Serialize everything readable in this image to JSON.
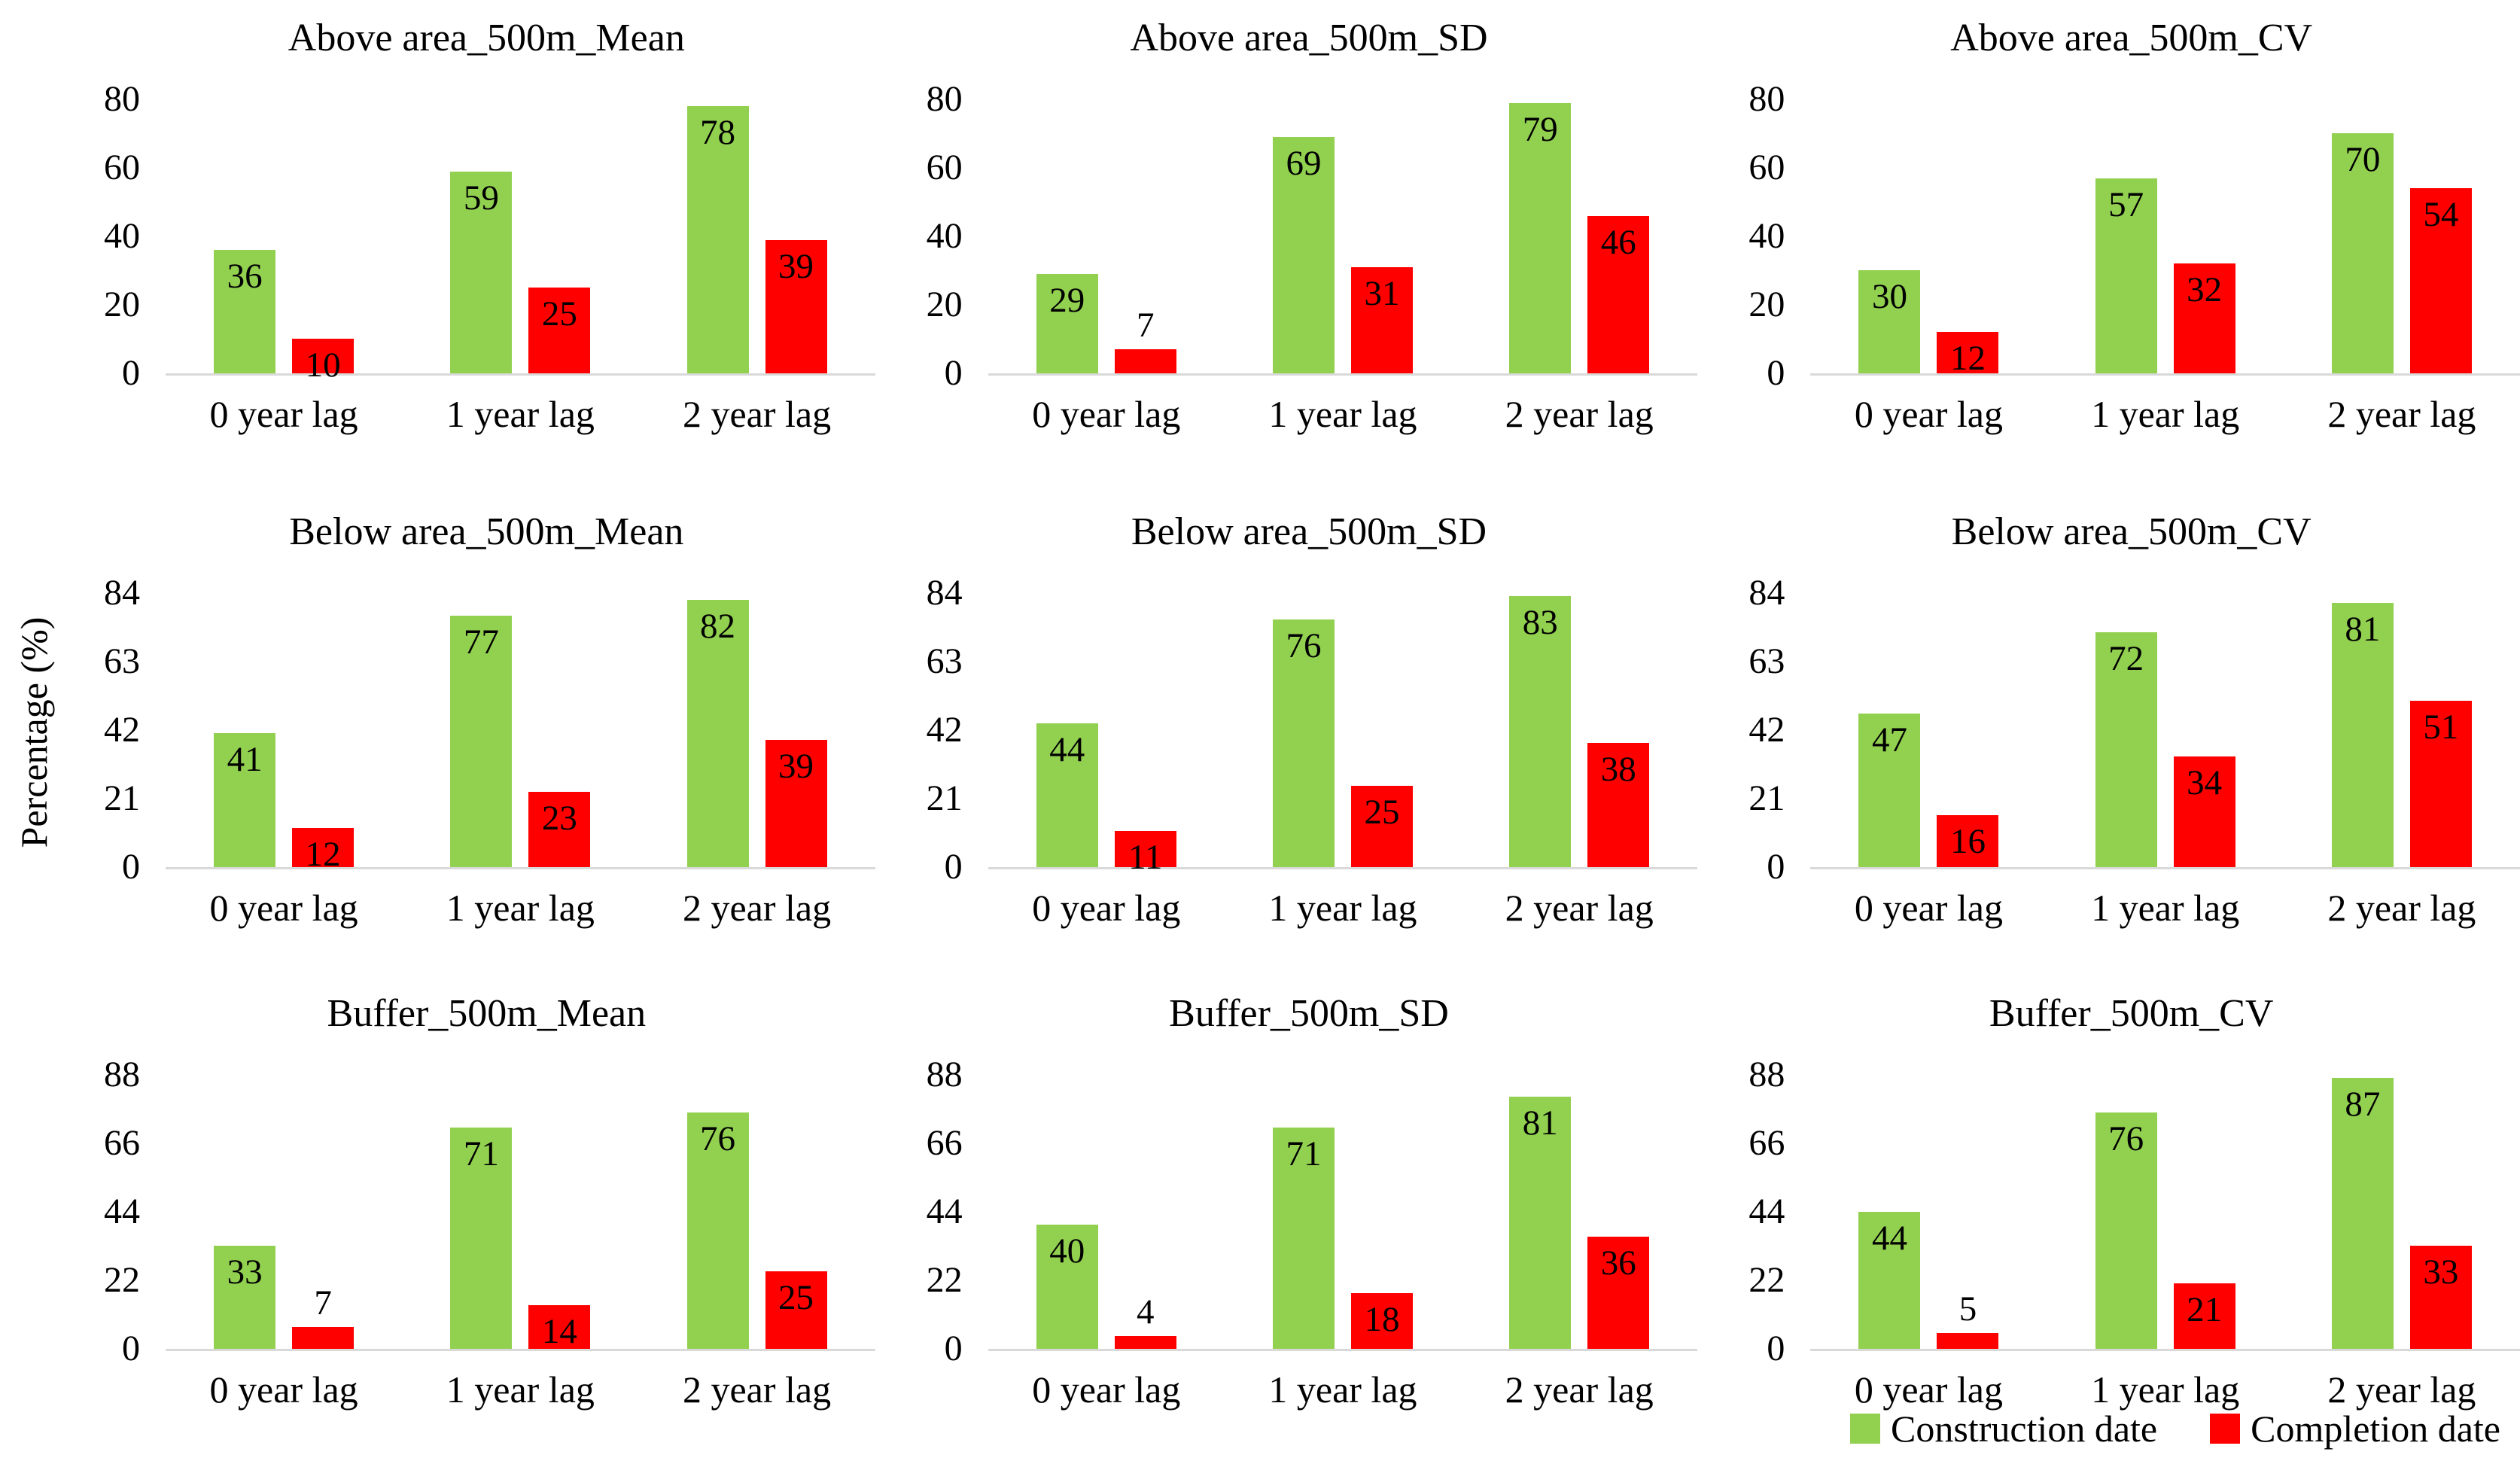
{
  "ylabel": "Percentage (%)",
  "legend": [
    {
      "label": "Construction date",
      "color": "#92D050"
    },
    {
      "label": "Completion date",
      "color": "#FF0000"
    }
  ],
  "chart_data": [
    {
      "type": "bar",
      "title": "Above area_500m_Mean",
      "categories": [
        "0 year lag",
        "1 year lag",
        "2 year lag"
      ],
      "series": [
        {
          "name": "Construction date",
          "color": "#92D050",
          "values": [
            36,
            59,
            78
          ]
        },
        {
          "name": "Completion date",
          "color": "#FF0000",
          "values": [
            10,
            25,
            39
          ]
        }
      ],
      "yticks": [
        0,
        20,
        40,
        60,
        80
      ],
      "ylim": [
        0,
        80
      ],
      "xlabel": "",
      "ylabel": "Percentage (%)",
      "grid": false,
      "legend_position": "bottom-right"
    },
    {
      "type": "bar",
      "title": "Above area_500m_SD",
      "categories": [
        "0 year lag",
        "1 year lag",
        "2 year lag"
      ],
      "series": [
        {
          "name": "Construction date",
          "color": "#92D050",
          "values": [
            29,
            69,
            79
          ]
        },
        {
          "name": "Completion date",
          "color": "#FF0000",
          "values": [
            7,
            31,
            46
          ]
        }
      ],
      "yticks": [
        0,
        20,
        40,
        60,
        80
      ],
      "ylim": [
        0,
        80
      ],
      "xlabel": "",
      "ylabel": "Percentage (%)",
      "grid": false,
      "legend_position": "bottom-right"
    },
    {
      "type": "bar",
      "title": "Above area_500m_CV",
      "categories": [
        "0 year lag",
        "1 year lag",
        "2 year lag"
      ],
      "series": [
        {
          "name": "Construction date",
          "color": "#92D050",
          "values": [
            30,
            57,
            70
          ]
        },
        {
          "name": "Completion date",
          "color": "#FF0000",
          "values": [
            12,
            32,
            54
          ]
        }
      ],
      "yticks": [
        0,
        20,
        40,
        60,
        80
      ],
      "ylim": [
        0,
        80
      ],
      "xlabel": "",
      "ylabel": "Percentage (%)",
      "grid": false,
      "legend_position": "bottom-right"
    },
    {
      "type": "bar",
      "title": "Below area_500m_Mean",
      "categories": [
        "0 year lag",
        "1 year lag",
        "2 year lag"
      ],
      "series": [
        {
          "name": "Construction date",
          "color": "#92D050",
          "values": [
            41,
            77,
            82
          ]
        },
        {
          "name": "Completion date",
          "color": "#FF0000",
          "values": [
            12,
            23,
            39
          ]
        }
      ],
      "yticks": [
        0,
        21,
        42,
        63,
        84
      ],
      "ylim": [
        0,
        84
      ],
      "xlabel": "",
      "ylabel": "Percentage (%)",
      "grid": false,
      "legend_position": "bottom-right"
    },
    {
      "type": "bar",
      "title": "Below area_500m_SD",
      "categories": [
        "0 year lag",
        "1 year lag",
        "2 year lag"
      ],
      "series": [
        {
          "name": "Construction date",
          "color": "#92D050",
          "values": [
            44,
            76,
            83
          ]
        },
        {
          "name": "Completion date",
          "color": "#FF0000",
          "values": [
            11,
            25,
            38
          ]
        }
      ],
      "yticks": [
        0,
        21,
        42,
        63,
        84
      ],
      "ylim": [
        0,
        84
      ],
      "xlabel": "",
      "ylabel": "Percentage (%)",
      "grid": false,
      "legend_position": "bottom-right"
    },
    {
      "type": "bar",
      "title": "Below area_500m_CV",
      "categories": [
        "0 year lag",
        "1 year lag",
        "2 year lag"
      ],
      "series": [
        {
          "name": "Construction date",
          "color": "#92D050",
          "values": [
            47,
            72,
            81
          ]
        },
        {
          "name": "Completion date",
          "color": "#FF0000",
          "values": [
            16,
            34,
            51
          ]
        }
      ],
      "yticks": [
        0,
        21,
        42,
        63,
        84
      ],
      "ylim": [
        0,
        84
      ],
      "xlabel": "",
      "ylabel": "Percentage (%)",
      "grid": false,
      "legend_position": "bottom-right"
    },
    {
      "type": "bar",
      "title": "Buffer_500m_Mean",
      "categories": [
        "0 year lag",
        "1 year lag",
        "2 year lag"
      ],
      "series": [
        {
          "name": "Construction date",
          "color": "#92D050",
          "values": [
            33,
            71,
            76
          ]
        },
        {
          "name": "Completion date",
          "color": "#FF0000",
          "values": [
            7,
            14,
            25
          ]
        }
      ],
      "yticks": [
        0,
        22,
        44,
        66,
        88
      ],
      "ylim": [
        0,
        88
      ],
      "xlabel": "",
      "ylabel": "Percentage (%)",
      "grid": false,
      "legend_position": "bottom-right"
    },
    {
      "type": "bar",
      "title": "Buffer_500m_SD",
      "categories": [
        "0 year lag",
        "1 year lag",
        "2 year lag"
      ],
      "series": [
        {
          "name": "Construction date",
          "color": "#92D050",
          "values": [
            40,
            71,
            81
          ]
        },
        {
          "name": "Completion date",
          "color": "#FF0000",
          "values": [
            4,
            18,
            36
          ]
        }
      ],
      "yticks": [
        0,
        22,
        44,
        66,
        88
      ],
      "ylim": [
        0,
        88
      ],
      "xlabel": "",
      "ylabel": "Percentage (%)",
      "grid": false,
      "legend_position": "bottom-right"
    },
    {
      "type": "bar",
      "title": "Buffer_500m_CV",
      "categories": [
        "0 year lag",
        "1 year lag",
        "2 year lag"
      ],
      "series": [
        {
          "name": "Construction date",
          "color": "#92D050",
          "values": [
            44,
            76,
            87
          ]
        },
        {
          "name": "Completion date",
          "color": "#FF0000",
          "values": [
            5,
            21,
            33
          ]
        }
      ],
      "yticks": [
        0,
        22,
        44,
        66,
        88
      ],
      "ylim": [
        0,
        88
      ],
      "xlabel": "",
      "ylabel": "Percentage (%)",
      "grid": false,
      "legend_position": "bottom-right"
    }
  ]
}
